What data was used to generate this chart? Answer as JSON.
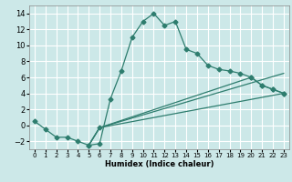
{
  "xlabel": "Humidex (Indice chaleur)",
  "bg_color": "#cce8e8",
  "grid_color": "#ffffff",
  "line_color": "#2e7d6e",
  "xlim": [
    -0.5,
    23.5
  ],
  "ylim": [
    -3.0,
    15.0
  ],
  "xticks": [
    0,
    1,
    2,
    3,
    4,
    5,
    6,
    7,
    8,
    9,
    10,
    11,
    12,
    13,
    14,
    15,
    16,
    17,
    18,
    19,
    20,
    21,
    22,
    23
  ],
  "yticks": [
    -2,
    0,
    2,
    4,
    6,
    8,
    10,
    12,
    14
  ],
  "line1_x": [
    0,
    1,
    2,
    3,
    4,
    5,
    6,
    7,
    8,
    9,
    10,
    11,
    12,
    13,
    14,
    15,
    16,
    17,
    18,
    19,
    20,
    21,
    22,
    23
  ],
  "line1_y": [
    0.5,
    -0.5,
    -1.5,
    -1.5,
    -2.0,
    -2.5,
    -2.3,
    3.3,
    6.8,
    11.0,
    13.0,
    14.0,
    12.5,
    13.0,
    9.5,
    9.0,
    7.5,
    7.0,
    6.8,
    6.5,
    6.0,
    5.0,
    4.5,
    4.0
  ],
  "line2_x": [
    5,
    6,
    23
  ],
  "line2_y": [
    -2.5,
    -0.3,
    4.0
  ],
  "line3_x": [
    5,
    6,
    23
  ],
  "line3_y": [
    -2.5,
    -0.3,
    6.5
  ],
  "line4_x": [
    5,
    6,
    20,
    21,
    22,
    23
  ],
  "line4_y": [
    -2.5,
    -0.3,
    6.0,
    5.0,
    4.5,
    4.0
  ]
}
